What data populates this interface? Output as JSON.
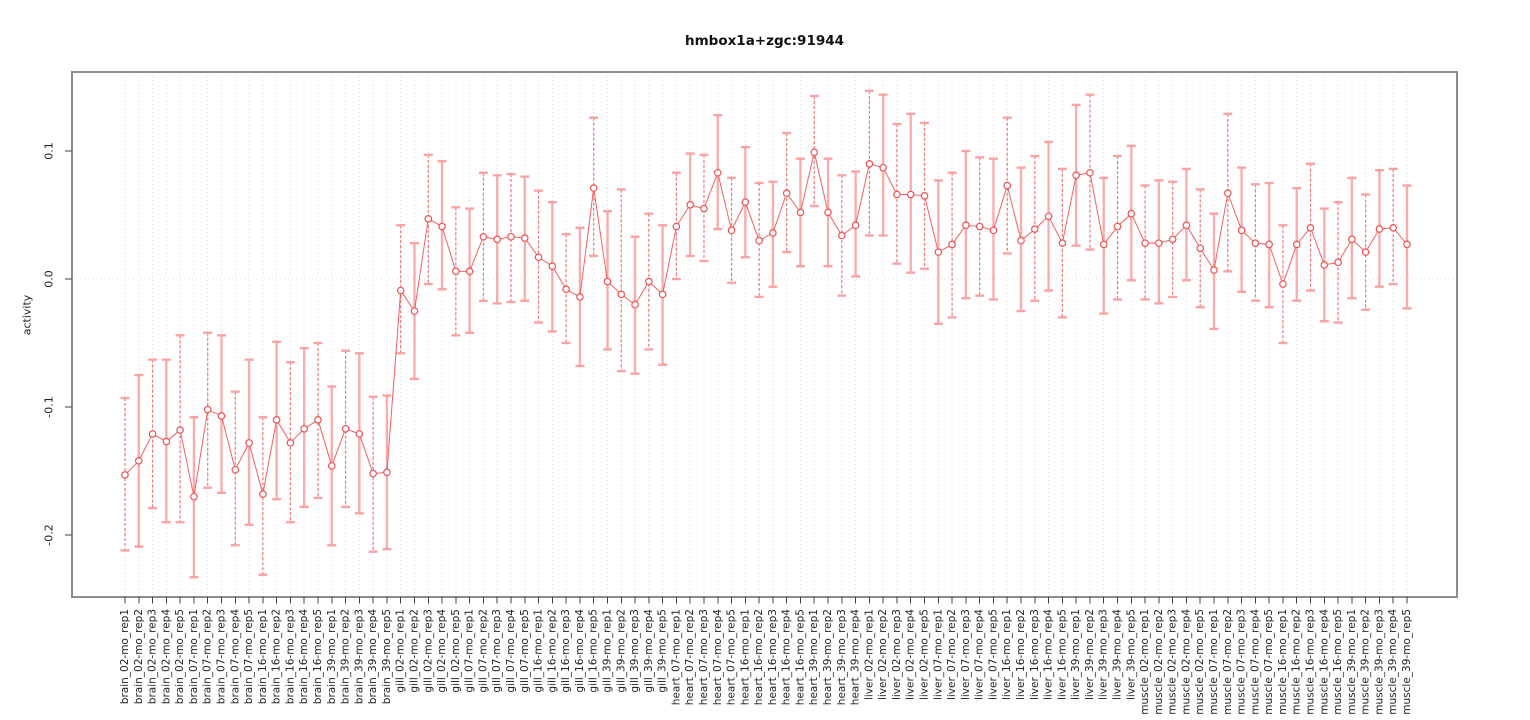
{
  "title": "hmbox1a+zgc:91944",
  "chart_data": {
    "type": "scatter",
    "title": "hmbox1a+zgc:91944",
    "xlabel": "",
    "ylabel": "activity",
    "ylim": [
      -0.2484,
      0.1617
    ],
    "yticks": [
      0.1,
      0,
      -0.1,
      -0.2
    ],
    "ytick_labels": [
      "0.1",
      "0.0",
      "-0.1",
      "-0.2"
    ],
    "grid": "dotted vertical line per sample, dotted horizontal line at 0",
    "legend": "none",
    "colors": {
      "point": "#f05050",
      "line": "#f05050",
      "errorbar_dashed": "#ee6060",
      "errorbar_pale": "#f9a0a0",
      "gridline": "#dcdcdc",
      "box": "#8c8c8c",
      "text": "#222222"
    },
    "points": [
      {
        "label": "brain_02-mo_rep1",
        "value": -0.153,
        "lo": -0.212,
        "hi": -0.093
      },
      {
        "label": "brain_02-mo_rep2",
        "value": -0.142,
        "lo": -0.209,
        "hi": -0.075
      },
      {
        "label": "brain_02-mo_rep3",
        "value": -0.121,
        "lo": -0.179,
        "hi": -0.063
      },
      {
        "label": "brain_02-mo_rep4",
        "value": -0.127,
        "lo": -0.19,
        "hi": -0.063
      },
      {
        "label": "brain_02-mo_rep5",
        "value": -0.118,
        "lo": -0.19,
        "hi": -0.044
      },
      {
        "label": "brain_07-mo_rep1",
        "value": -0.17,
        "lo": -0.233,
        "hi": -0.108
      },
      {
        "label": "brain_07-mo_rep2",
        "value": -0.102,
        "lo": -0.163,
        "hi": -0.042
      },
      {
        "label": "brain_07-mo_rep3",
        "value": -0.107,
        "lo": -0.167,
        "hi": -0.044
      },
      {
        "label": "brain_07-mo_rep4",
        "value": -0.149,
        "lo": -0.208,
        "hi": -0.088
      },
      {
        "label": "brain_07-mo_rep5",
        "value": -0.128,
        "lo": -0.192,
        "hi": -0.063
      },
      {
        "label": "brain_16-mo_rep1",
        "value": -0.168,
        "lo": -0.231,
        "hi": -0.108
      },
      {
        "label": "brain_16-mo_rep2",
        "value": -0.11,
        "lo": -0.172,
        "hi": -0.049
      },
      {
        "label": "brain_16-mo_rep3",
        "value": -0.128,
        "lo": -0.19,
        "hi": -0.065
      },
      {
        "label": "brain_16-mo_rep4",
        "value": -0.117,
        "lo": -0.178,
        "hi": -0.054
      },
      {
        "label": "brain_16-mo_rep5",
        "value": -0.11,
        "lo": -0.171,
        "hi": -0.05
      },
      {
        "label": "brain_39-mo_rep1",
        "value": -0.146,
        "lo": -0.208,
        "hi": -0.084
      },
      {
        "label": "brain_39-mo_rep2",
        "value": -0.117,
        "lo": -0.178,
        "hi": -0.056
      },
      {
        "label": "brain_39-mo_rep3",
        "value": -0.121,
        "lo": -0.183,
        "hi": -0.058
      },
      {
        "label": "brain_39-mo_rep4",
        "value": -0.152,
        "lo": -0.213,
        "hi": -0.092
      },
      {
        "label": "brain_39-mo_rep5",
        "value": -0.151,
        "lo": -0.211,
        "hi": -0.091
      },
      {
        "label": "gill_02-mo_rep1",
        "value": -0.009,
        "lo": -0.058,
        "hi": 0.042
      },
      {
        "label": "gill_02-mo_rep2",
        "value": -0.025,
        "lo": -0.078,
        "hi": 0.028
      },
      {
        "label": "gill_02-mo_rep3",
        "value": 0.047,
        "lo": -0.004,
        "hi": 0.097
      },
      {
        "label": "gill_02-mo_rep4",
        "value": 0.041,
        "lo": -0.008,
        "hi": 0.092
      },
      {
        "label": "gill_02-mo_rep5",
        "value": 0.006,
        "lo": -0.044,
        "hi": 0.056
      },
      {
        "label": "gill_07-mo_rep1",
        "value": 0.006,
        "lo": -0.042,
        "hi": 0.055
      },
      {
        "label": "gill_07-mo_rep2",
        "value": 0.033,
        "lo": -0.017,
        "hi": 0.083
      },
      {
        "label": "gill_07-mo_rep3",
        "value": 0.031,
        "lo": -0.019,
        "hi": 0.081
      },
      {
        "label": "gill_07-mo_rep4",
        "value": 0.033,
        "lo": -0.018,
        "hi": 0.082
      },
      {
        "label": "gill_07-mo_rep5",
        "value": 0.032,
        "lo": -0.017,
        "hi": 0.08
      },
      {
        "label": "gill_16-mo_rep1",
        "value": 0.017,
        "lo": -0.034,
        "hi": 0.069
      },
      {
        "label": "gill_16-mo_rep2",
        "value": 0.01,
        "lo": -0.041,
        "hi": 0.06
      },
      {
        "label": "gill_16-mo_rep3",
        "value": -0.008,
        "lo": -0.05,
        "hi": 0.035
      },
      {
        "label": "gill_16-mo_rep4",
        "value": -0.014,
        "lo": -0.068,
        "hi": 0.04
      },
      {
        "label": "gill_16-mo_rep5",
        "value": 0.071,
        "lo": 0.018,
        "hi": 0.126
      },
      {
        "label": "gill_39-mo_rep1",
        "value": -0.002,
        "lo": -0.055,
        "hi": 0.053
      },
      {
        "label": "gill_39-mo_rep2",
        "value": -0.012,
        "lo": -0.072,
        "hi": 0.07
      },
      {
        "label": "gill_39-mo_rep3",
        "value": -0.02,
        "lo": -0.074,
        "hi": 0.033
      },
      {
        "label": "gill_39-mo_rep4",
        "value": -0.002,
        "lo": -0.055,
        "hi": 0.051
      },
      {
        "label": "gill_39-mo_rep5",
        "value": -0.012,
        "lo": -0.067,
        "hi": 0.042
      },
      {
        "label": "heart_07-mo_rep1",
        "value": 0.041,
        "lo": 0.0,
        "hi": 0.083
      },
      {
        "label": "heart_07-mo_rep2",
        "value": 0.058,
        "lo": 0.018,
        "hi": 0.098
      },
      {
        "label": "heart_07-mo_rep3",
        "value": 0.055,
        "lo": 0.014,
        "hi": 0.097
      },
      {
        "label": "heart_07-mo_rep4",
        "value": 0.083,
        "lo": 0.039,
        "hi": 0.128
      },
      {
        "label": "heart_07-mo_rep5",
        "value": 0.038,
        "lo": -0.003,
        "hi": 0.079
      },
      {
        "label": "heart_16-mo_rep1",
        "value": 0.06,
        "lo": 0.017,
        "hi": 0.103
      },
      {
        "label": "heart_16-mo_rep2",
        "value": 0.03,
        "lo": -0.014,
        "hi": 0.075
      },
      {
        "label": "heart_16-mo_rep3",
        "value": 0.036,
        "lo": -0.006,
        "hi": 0.076
      },
      {
        "label": "heart_16-mo_rep4",
        "value": 0.067,
        "lo": 0.021,
        "hi": 0.114
      },
      {
        "label": "heart_16-mo_rep5",
        "value": 0.052,
        "lo": 0.01,
        "hi": 0.094
      },
      {
        "label": "heart_39-mo_rep1",
        "value": 0.099,
        "lo": 0.057,
        "hi": 0.143
      },
      {
        "label": "heart_39-mo_rep2",
        "value": 0.052,
        "lo": 0.01,
        "hi": 0.094
      },
      {
        "label": "heart_39-mo_rep3",
        "value": 0.034,
        "lo": -0.013,
        "hi": 0.081
      },
      {
        "label": "heart_39-mo_rep4",
        "value": 0.042,
        "lo": 0.002,
        "hi": 0.084
      },
      {
        "label": "liver_02-mo_rep1",
        "value": 0.09,
        "lo": 0.034,
        "hi": 0.147
      },
      {
        "label": "liver_02-mo_rep2",
        "value": 0.087,
        "lo": 0.034,
        "hi": 0.144
      },
      {
        "label": "liver_02-mo_rep3",
        "value": 0.066,
        "lo": 0.012,
        "hi": 0.121
      },
      {
        "label": "liver_02-mo_rep4",
        "value": 0.066,
        "lo": 0.005,
        "hi": 0.129
      },
      {
        "label": "liver_02-mo_rep5",
        "value": 0.065,
        "lo": 0.008,
        "hi": 0.122
      },
      {
        "label": "liver_07-mo_rep1",
        "value": 0.021,
        "lo": -0.035,
        "hi": 0.077
      },
      {
        "label": "liver_07-mo_rep2",
        "value": 0.027,
        "lo": -0.03,
        "hi": 0.083
      },
      {
        "label": "liver_07-mo_rep3",
        "value": 0.042,
        "lo": -0.015,
        "hi": 0.1
      },
      {
        "label": "liver_07-mo_rep4",
        "value": 0.041,
        "lo": -0.013,
        "hi": 0.095
      },
      {
        "label": "liver_07-mo_rep5",
        "value": 0.038,
        "lo": -0.016,
        "hi": 0.094
      },
      {
        "label": "liver_16-mo_rep1",
        "value": 0.073,
        "lo": 0.02,
        "hi": 0.126
      },
      {
        "label": "liver_16-mo_rep2",
        "value": 0.03,
        "lo": -0.025,
        "hi": 0.087
      },
      {
        "label": "liver_16-mo_rep3",
        "value": 0.039,
        "lo": -0.017,
        "hi": 0.096
      },
      {
        "label": "liver_16-mo_rep4",
        "value": 0.049,
        "lo": -0.009,
        "hi": 0.107
      },
      {
        "label": "liver_16-mo_rep5",
        "value": 0.028,
        "lo": -0.03,
        "hi": 0.086
      },
      {
        "label": "liver_39-mo_rep1",
        "value": 0.081,
        "lo": 0.026,
        "hi": 0.136
      },
      {
        "label": "liver_39-mo_rep2",
        "value": 0.083,
        "lo": 0.023,
        "hi": 0.144
      },
      {
        "label": "liver_39-mo_rep3",
        "value": 0.027,
        "lo": -0.027,
        "hi": 0.079
      },
      {
        "label": "liver_39-mo_rep4",
        "value": 0.041,
        "lo": -0.016,
        "hi": 0.096
      },
      {
        "label": "liver_39-mo_rep5",
        "value": 0.051,
        "lo": -0.001,
        "hi": 0.104
      },
      {
        "label": "muscle_02-mo_rep1",
        "value": 0.028,
        "lo": -0.016,
        "hi": 0.073
      },
      {
        "label": "muscle_02-mo_rep2",
        "value": 0.028,
        "lo": -0.019,
        "hi": 0.077
      },
      {
        "label": "muscle_02-mo_rep3",
        "value": 0.031,
        "lo": -0.014,
        "hi": 0.076
      },
      {
        "label": "muscle_02-mo_rep4",
        "value": 0.042,
        "lo": -0.001,
        "hi": 0.086
      },
      {
        "label": "muscle_02-mo_rep5",
        "value": 0.024,
        "lo": -0.022,
        "hi": 0.07
      },
      {
        "label": "muscle_07-mo_rep1",
        "value": 0.007,
        "lo": -0.039,
        "hi": 0.051
      },
      {
        "label": "muscle_07-mo_rep2",
        "value": 0.067,
        "lo": 0.006,
        "hi": 0.129
      },
      {
        "label": "muscle_07-mo_rep3",
        "value": 0.038,
        "lo": -0.01,
        "hi": 0.087
      },
      {
        "label": "muscle_07-mo_rep4",
        "value": 0.028,
        "lo": -0.017,
        "hi": 0.074
      },
      {
        "label": "muscle_07-mo_rep5",
        "value": 0.027,
        "lo": -0.022,
        "hi": 0.075
      },
      {
        "label": "muscle_16-mo_rep1",
        "value": -0.004,
        "lo": -0.05,
        "hi": 0.042
      },
      {
        "label": "muscle_16-mo_rep2",
        "value": 0.027,
        "lo": -0.017,
        "hi": 0.071
      },
      {
        "label": "muscle_16-mo_rep3",
        "value": 0.04,
        "lo": -0.009,
        "hi": 0.09
      },
      {
        "label": "muscle_16-mo_rep4",
        "value": 0.011,
        "lo": -0.033,
        "hi": 0.055
      },
      {
        "label": "muscle_16-mo_rep5",
        "value": 0.013,
        "lo": -0.034,
        "hi": 0.06
      },
      {
        "label": "muscle_39-mo_rep1",
        "value": 0.031,
        "lo": -0.015,
        "hi": 0.079
      },
      {
        "label": "muscle_39-mo_rep2",
        "value": 0.021,
        "lo": -0.024,
        "hi": 0.066
      },
      {
        "label": "muscle_39-mo_rep3",
        "value": 0.039,
        "lo": -0.006,
        "hi": 0.085
      },
      {
        "label": "muscle_39-mo_rep4",
        "value": 0.04,
        "lo": -0.004,
        "hi": 0.086
      },
      {
        "label": "muscle_39-mo_rep5",
        "value": 0.027,
        "lo": -0.023,
        "hi": 0.073
      }
    ]
  }
}
